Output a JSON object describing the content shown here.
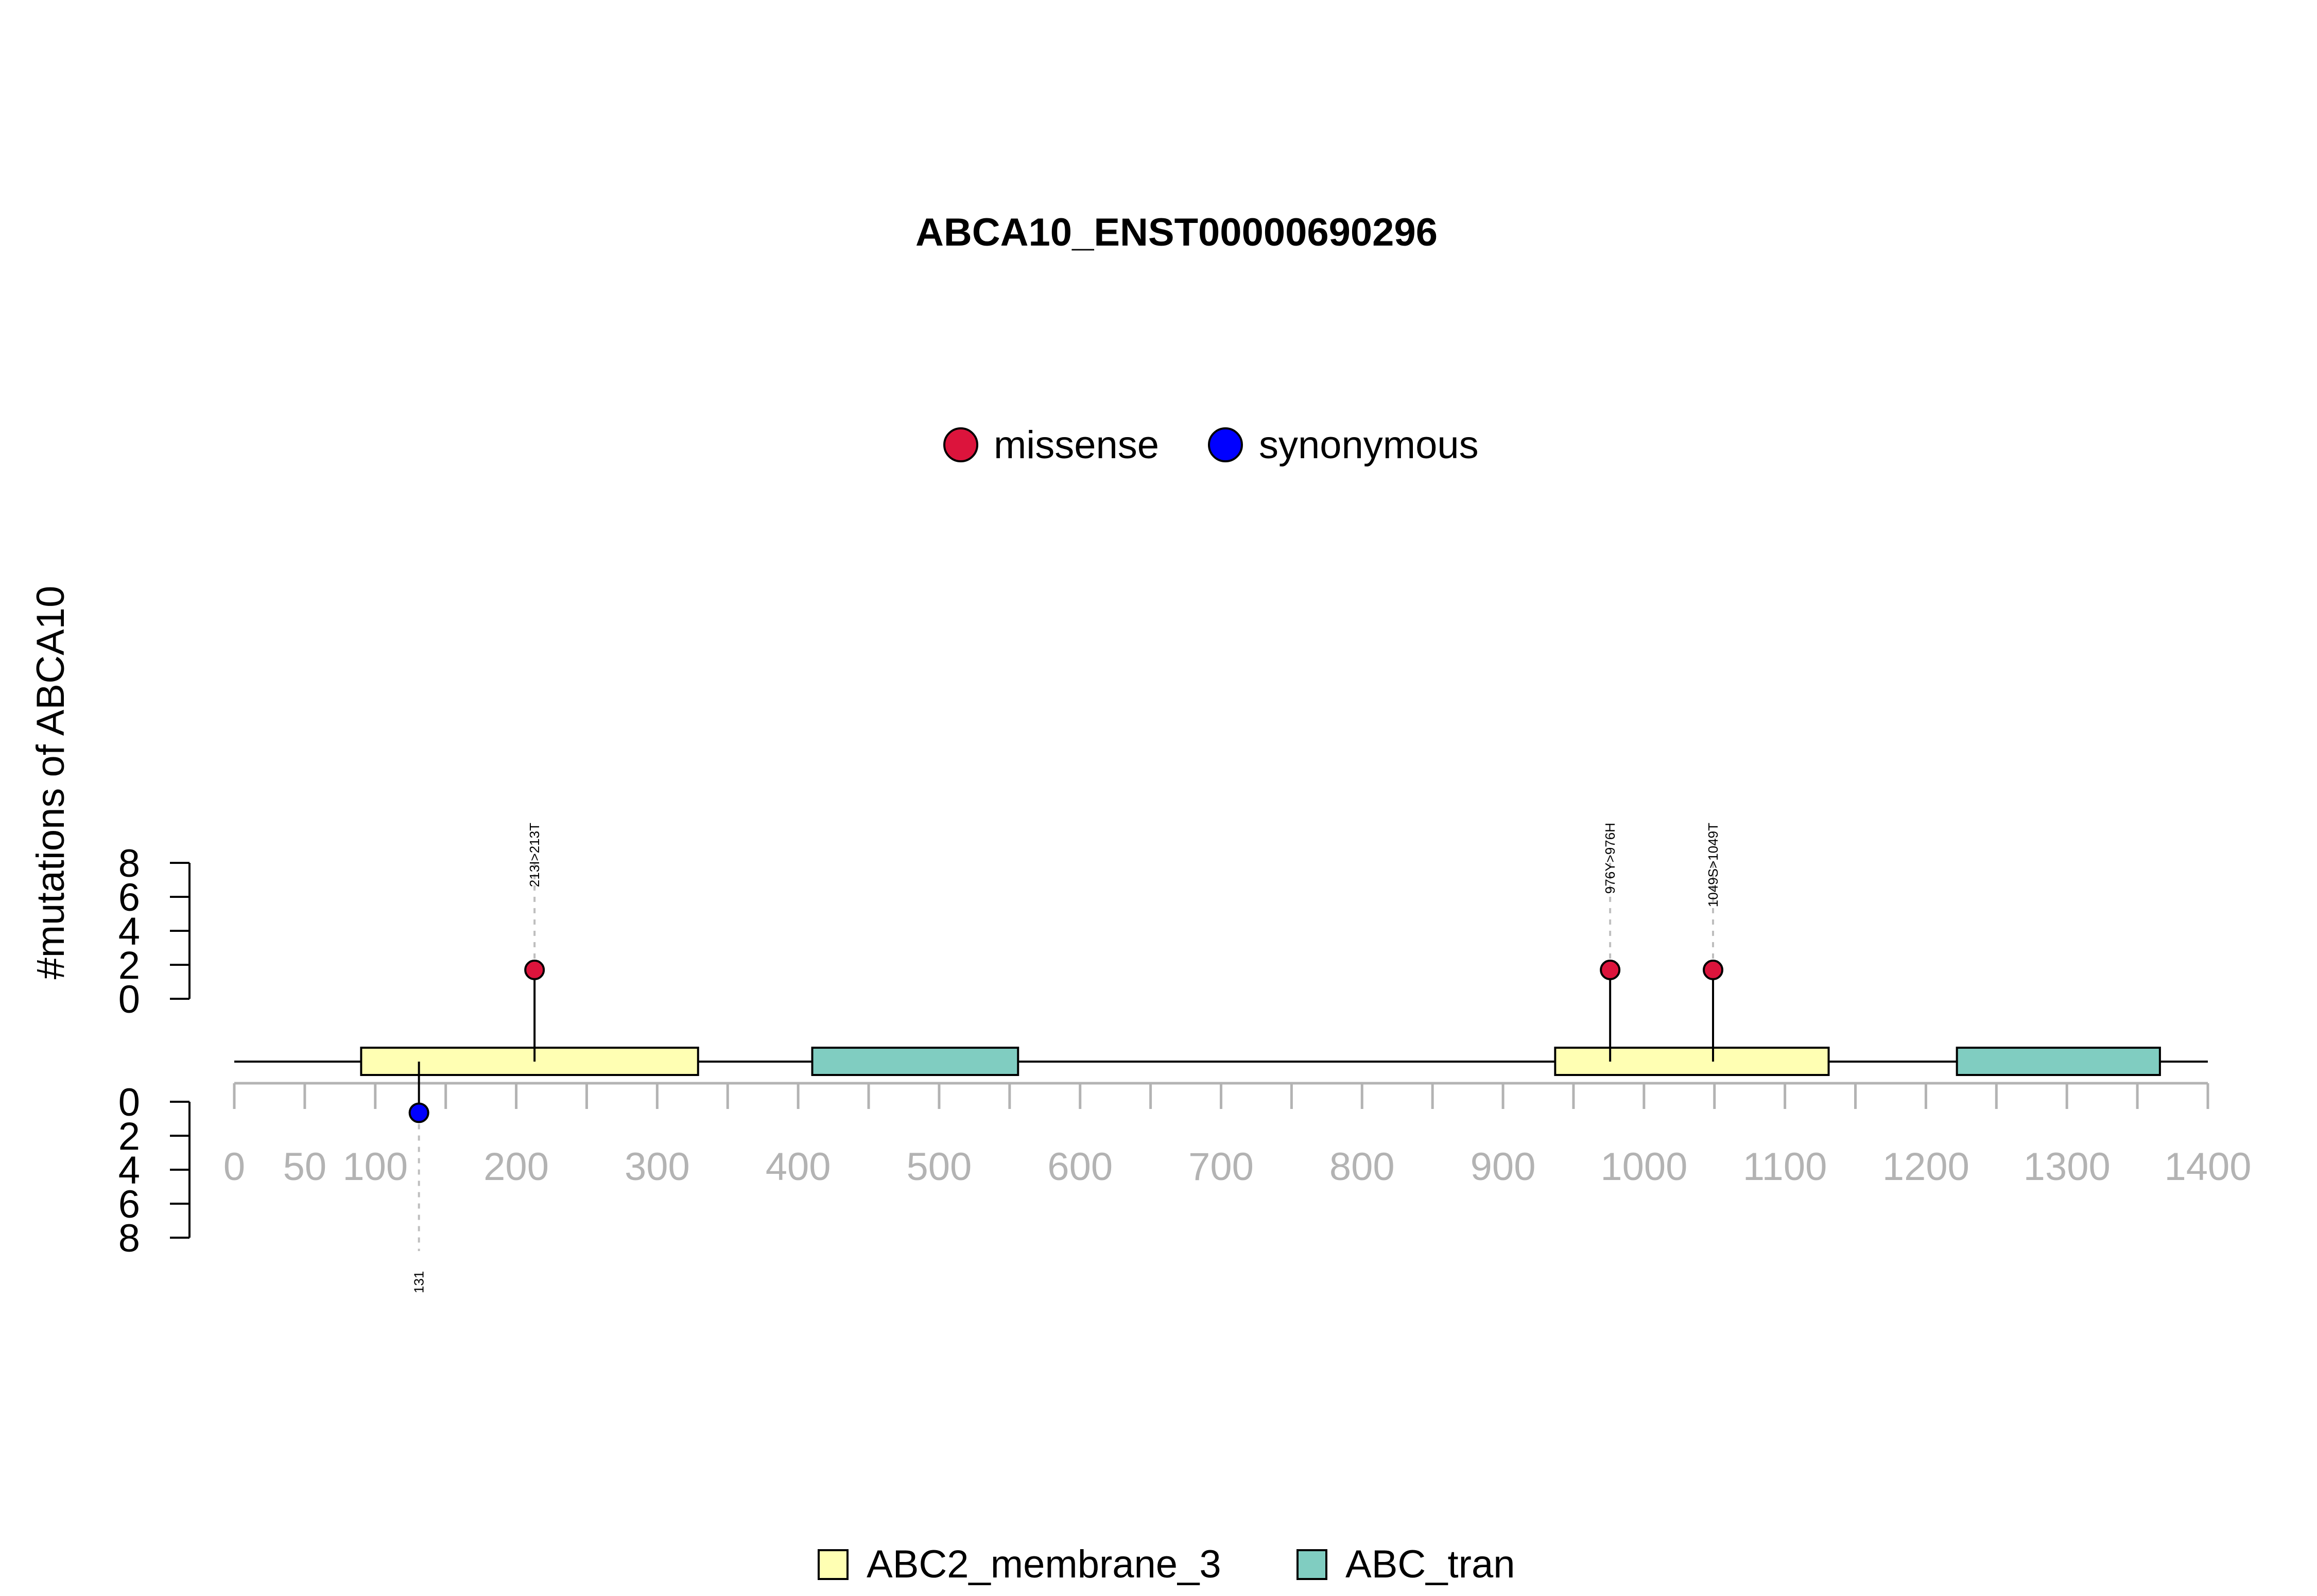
{
  "chart_data": {
    "type": "lollipop",
    "title": "ABCA10_ENST00000690296",
    "ylabel": "#mutations of ABCA10",
    "x_axis": {
      "range": [
        0,
        1400
      ],
      "tick_values": [
        0,
        50,
        100,
        150,
        200,
        250,
        300,
        350,
        400,
        450,
        500,
        550,
        600,
        650,
        700,
        750,
        800,
        850,
        900,
        950,
        1000,
        1050,
        1100,
        1150,
        1200,
        1250,
        1300,
        1350,
        1400
      ],
      "tick_labels": [
        "0",
        "50",
        "100",
        "200",
        "300",
        "400",
        "500",
        "600",
        "700",
        "800",
        "900",
        "1000",
        "1100",
        "1200",
        "1300",
        "1400"
      ],
      "label_values": [
        0,
        50,
        100,
        200,
        300,
        400,
        500,
        600,
        700,
        800,
        900,
        1000,
        1100,
        1200,
        1300,
        1400
      ]
    },
    "y_axis_top": {
      "range": [
        0,
        8
      ],
      "ticks": [
        "0",
        "2",
        "4",
        "6",
        "8"
      ]
    },
    "y_axis_bottom": {
      "range": [
        0,
        8
      ],
      "ticks": [
        "0",
        "2",
        "4",
        "6",
        "8"
      ]
    },
    "protein_length": 1400,
    "domains": [
      {
        "name": "ABC2_membrane_3",
        "start": 90,
        "end": 329,
        "color": "#FFFFB3"
      },
      {
        "name": "ABC_tran",
        "start": 410,
        "end": 556,
        "color": "#80CDC1"
      },
      {
        "name": "ABC2_membrane_3",
        "start": 937,
        "end": 1131,
        "color": "#FFFFB3"
      },
      {
        "name": "ABC_tran",
        "start": 1222,
        "end": 1366,
        "color": "#80CDC1"
      }
    ],
    "mutations": [
      {
        "position": 213,
        "count": 1,
        "type": "missense",
        "label": "213I>213T",
        "side": "top"
      },
      {
        "position": 976,
        "count": 1,
        "type": "missense",
        "label": "976Y>976H",
        "side": "top"
      },
      {
        "position": 1049,
        "count": 1,
        "type": "missense",
        "label": "1049S>1049T",
        "side": "top"
      },
      {
        "position": 131,
        "count": 1,
        "type": "synonymous",
        "label": "131",
        "side": "bottom"
      }
    ],
    "mutation_legend": [
      {
        "name": "missense",
        "color": "#DC143C"
      },
      {
        "name": "synonymous",
        "color": "#0000FF"
      }
    ],
    "domain_legend": [
      {
        "name": "ABC2_membrane_3",
        "color": "#FFFFB3"
      },
      {
        "name": "ABC_tran",
        "color": "#80CDC1"
      }
    ],
    "colors": {
      "axis_gray": "#B3B3B3",
      "guide_gray": "#BEBEBE"
    }
  }
}
